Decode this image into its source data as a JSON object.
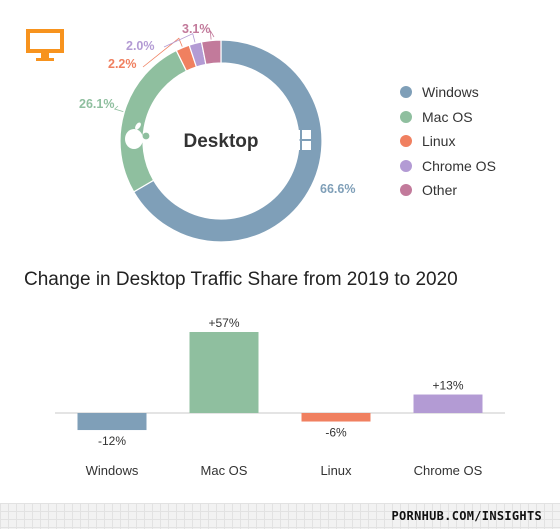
{
  "donut": {
    "center_label": "Desktop",
    "colors": {
      "accent": "#f7931e"
    },
    "icon": "monitor-icon"
  },
  "legend": [
    {
      "label": "Windows",
      "color": "#7f9fb8"
    },
    {
      "label": "Mac OS",
      "color": "#8fbf9f"
    },
    {
      "label": "Linux",
      "color": "#f08060"
    },
    {
      "label": "Chrome OS",
      "color": "#b39bd4"
    },
    {
      "label": "Other",
      "color": "#c27a9b"
    }
  ],
  "bar_title": "Change in Desktop Traffic Share from 2019 to 2020",
  "footer": {
    "brand": "PORNHUB.COM/INSIGHTS"
  },
  "chart_data": [
    {
      "type": "pie",
      "title": "Desktop",
      "categories": [
        "Windows",
        "Mac OS",
        "Linux",
        "Chrome OS",
        "Other"
      ],
      "values": [
        66.6,
        26.1,
        2.2,
        2.0,
        3.1
      ],
      "labels": [
        "66.6%",
        "26.1%",
        "2.2%",
        "2.0%",
        "3.1%"
      ],
      "colors": [
        "#7f9fb8",
        "#8fbf9f",
        "#f08060",
        "#b39bd4",
        "#c27a9b"
      ],
      "legend": "right"
    },
    {
      "type": "bar",
      "title": "Change in Desktop Traffic Share from 2019 to 2020",
      "categories": [
        "Windows",
        "Mac OS",
        "Linux",
        "Chrome OS"
      ],
      "values": [
        -12,
        57,
        -6,
        13
      ],
      "labels": [
        "-12%",
        "+57%",
        "-6%",
        "+13%"
      ],
      "colors": [
        "#7f9fb8",
        "#8fbf9f",
        "#f08060",
        "#b39bd4"
      ],
      "xlabel": "",
      "ylabel": ""
    }
  ]
}
